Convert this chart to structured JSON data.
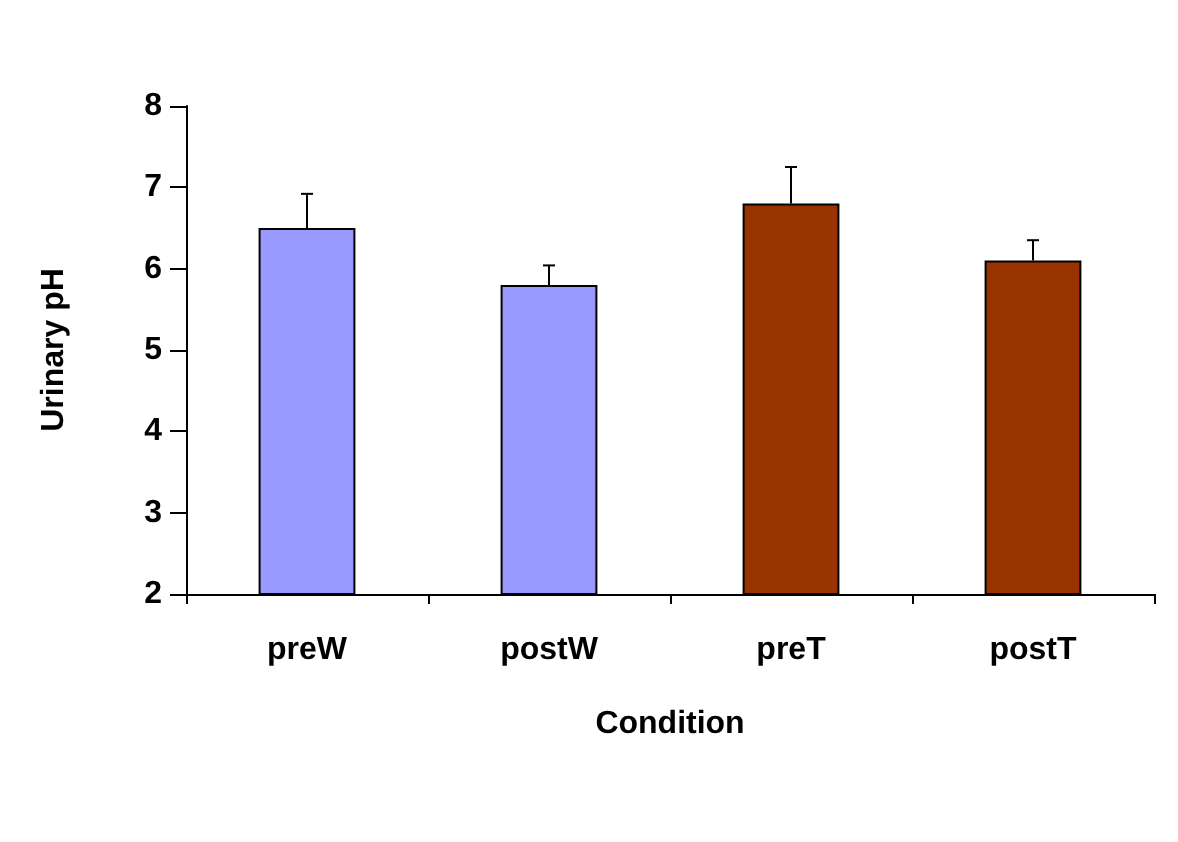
{
  "chart_data": {
    "type": "bar",
    "xlabel": "Condition",
    "ylabel": "Urinary pH",
    "categories": [
      "preW",
      "postW",
      "preT",
      "postT"
    ],
    "values": [
      6.5,
      5.8,
      6.8,
      6.1
    ],
    "colors": [
      "#9999ff",
      "#9999ff",
      "#993300",
      "#993300"
    ],
    "errors": [
      [
        6.5,
        6.92
      ],
      [
        5.8,
        6.04
      ],
      [
        6.8,
        7.25
      ],
      [
        6.1,
        6.35
      ]
    ],
    "ylim": [
      2,
      8
    ],
    "yticks": [
      2,
      3,
      4,
      5,
      6,
      7,
      8
    ],
    "grid": false
  }
}
